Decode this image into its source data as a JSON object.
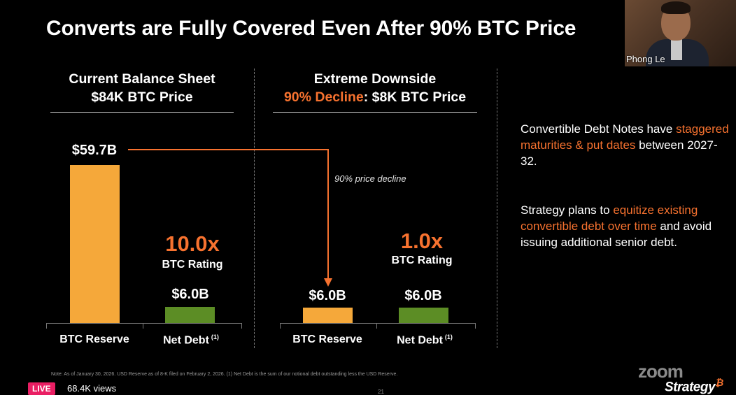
{
  "slide": {
    "title": "Converts are Fully Covered Even After 90% BTC Price",
    "left_header": {
      "line1": "Current Balance Sheet",
      "line2": "$84K BTC Price"
    },
    "right_header": {
      "line1": "Extreme Downside",
      "line2_accent": "90% Decline",
      "line2_rest": ": $8K BTC Price"
    },
    "arrow_label": "90% price decline",
    "left_chart": {
      "btc_reserve_value": "$59.7B",
      "net_debt_value": "$6.0B",
      "multiple": "10.0x",
      "rating_label": "BTC Rating",
      "cat1": "BTC Reserve",
      "cat2": "Net Debt",
      "footnote_marker": "(1)"
    },
    "right_chart": {
      "btc_reserve_value": "$6.0B",
      "net_debt_value": "$6.0B",
      "multiple": "1.0x",
      "rating_label": "BTC Rating",
      "cat1": "BTC Reserve",
      "cat2": "Net Debt",
      "footnote_marker": "(1)"
    },
    "side_text": {
      "p1_pre": "Convertible Debt Notes have",
      "p1_accent": "staggered maturities & put dates",
      "p1_post": "between 2027-32.",
      "p2_pre": "Strategy plans to",
      "p2_accent": "equitize existing convertible debt over time",
      "p2_post": "and avoid issuing additional senior debt."
    },
    "note": "Note: As of January 30, 2026. USD Reserve as of 8-K filed on February 2, 2026. (1) Net Debt is the sum of our notional debt outstanding less the USD Reserve.",
    "page_number": "21",
    "brand": "Strategy",
    "brand_mark": "₿"
  },
  "stream": {
    "live_label": "LIVE",
    "views": "68.4K views",
    "zoom_label": "zoom",
    "speaker_name": "Phong Le"
  },
  "chart_data": [
    {
      "type": "bar",
      "categories": [
        "BTC Reserve",
        "Net Debt"
      ],
      "values": [
        59.7,
        6.0
      ],
      "title": "Current Balance Sheet $84K BTC Price",
      "xlabel": "",
      "ylabel": ""
    },
    {
      "type": "bar",
      "categories": [
        "BTC Reserve",
        "Net Debt"
      ],
      "values": [
        6.0,
        6.0
      ],
      "title": "Extreme Downside 90% Decline: $8K BTC Price",
      "xlabel": "",
      "ylabel": ""
    }
  ],
  "colors": {
    "accent": "#f7722f",
    "btc_bar": "#f5a83a",
    "debt_bar": "#5c8d25"
  }
}
